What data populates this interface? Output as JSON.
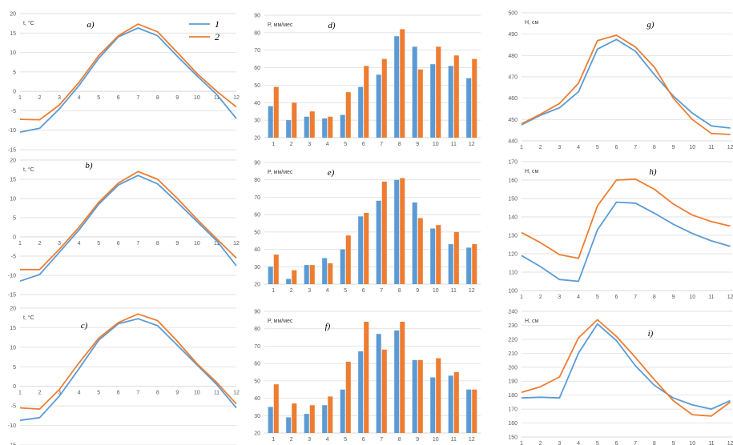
{
  "colors": {
    "series1": "#5B9BD5",
    "series2": "#ED7D31"
  },
  "legend": {
    "position": "inside panel a, top-right",
    "items": [
      "1",
      "2"
    ]
  },
  "chart_data": [
    {
      "id": "a",
      "type": "line",
      "panel_label": "a)",
      "ylabel": "t, °C",
      "ylim": [
        -15,
        20
      ],
      "yticks": [
        -15,
        -10,
        -5,
        0,
        5,
        10,
        15,
        20
      ],
      "x": [
        1,
        2,
        3,
        4,
        5,
        6,
        7,
        8,
        9,
        10,
        11,
        12
      ],
      "grid": true,
      "xaxis_at_zero": true,
      "series": [
        {
          "name": "1",
          "values": [
            -10.5,
            -9.5,
            -4.5,
            1.5,
            8.5,
            14,
            16.3,
            14.3,
            9,
            4,
            -0.8,
            -7
          ]
        },
        {
          "name": "2",
          "values": [
            -7.2,
            -7.3,
            -3.5,
            2.3,
            9.2,
            14.3,
            17.3,
            15.3,
            10,
            4.6,
            0,
            -4
          ]
        }
      ]
    },
    {
      "id": "d",
      "type": "bar",
      "panel_label": "d)",
      "ylabel": "P, мм/мес",
      "ylim": [
        20,
        90
      ],
      "yticks": [
        20,
        30,
        40,
        50,
        60,
        70,
        80,
        90
      ],
      "categories": [
        "1",
        "2",
        "3",
        "4",
        "5",
        "6",
        "7",
        "8",
        "9",
        "10",
        "11",
        "12"
      ],
      "grid": true,
      "series": [
        {
          "name": "1",
          "values": [
            38,
            30,
            32,
            31,
            33,
            49,
            56,
            78,
            72,
            62,
            61,
            54
          ]
        },
        {
          "name": "2",
          "values": [
            49,
            40,
            35,
            32,
            46,
            61,
            65,
            82,
            59,
            72,
            67,
            65
          ]
        }
      ]
    },
    {
      "id": "g",
      "type": "line",
      "panel_label": "g)",
      "ylabel": "H, см",
      "ylim": [
        440,
        500
      ],
      "yticks": [
        440,
        450,
        460,
        470,
        480,
        490,
        500
      ],
      "x": [
        1,
        2,
        3,
        4,
        5,
        6,
        7,
        8,
        9,
        10,
        11,
        12
      ],
      "xlim": [
        1,
        12.1
      ],
      "grid": true,
      "series": [
        {
          "name": "1",
          "values": [
            447.5,
            452,
            455.5,
            463,
            483,
            487.5,
            482,
            471,
            461,
            453,
            447,
            446
          ]
        },
        {
          "name": "2",
          "values": [
            448,
            452.5,
            457.5,
            467,
            487,
            489.5,
            484,
            474.5,
            460,
            450,
            443.5,
            443
          ]
        }
      ]
    },
    {
      "id": "b",
      "type": "line",
      "panel_label": "b)",
      "ylabel": "t, °C",
      "ylim": [
        -15,
        20
      ],
      "yticks": [
        -15,
        -10,
        -5,
        0,
        5,
        10,
        15,
        20
      ],
      "x": [
        1,
        2,
        3,
        4,
        5,
        6,
        7,
        8,
        9,
        10,
        11,
        12
      ],
      "grid": true,
      "xaxis_at_zero": true,
      "series": [
        {
          "name": "1",
          "values": [
            -11.5,
            -9.8,
            -4,
            1.8,
            8.5,
            13.5,
            16,
            13.8,
            9,
            4,
            -1,
            -7.5
          ]
        },
        {
          "name": "2",
          "values": [
            -8.5,
            -8.5,
            -3.2,
            2.5,
            9,
            14,
            17,
            15,
            10,
            4.6,
            -0.5,
            -5.5
          ]
        }
      ]
    },
    {
      "id": "e",
      "type": "bar",
      "panel_label": "e)",
      "ylabel": "P, мм/мес",
      "ylim": [
        20,
        90
      ],
      "yticks": [
        20,
        30,
        40,
        50,
        60,
        70,
        80,
        90
      ],
      "categories": [
        "1",
        "2",
        "3",
        "4",
        "5",
        "6",
        "7",
        "8",
        "9",
        "10",
        "11",
        "12"
      ],
      "grid": true,
      "series": [
        {
          "name": "1",
          "values": [
            30,
            23,
            31,
            35,
            40,
            59,
            68,
            80,
            67,
            52,
            43,
            41
          ]
        },
        {
          "name": "2",
          "values": [
            37,
            28,
            31,
            32,
            48,
            61,
            79,
            81,
            58,
            54,
            50,
            43
          ]
        }
      ]
    },
    {
      "id": "h",
      "type": "line",
      "panel_label": "h)",
      "ylabel": "H, см",
      "ylim": [
        100,
        170
      ],
      "yticks": [
        100,
        110,
        120,
        130,
        140,
        150,
        160,
        170
      ],
      "x": [
        1,
        2,
        3,
        4,
        5,
        6,
        7,
        8,
        9,
        10,
        11,
        12
      ],
      "xlim": [
        1,
        12.1
      ],
      "grid": true,
      "series": [
        {
          "name": "1",
          "values": [
            119,
            113,
            106,
            105,
            133,
            148,
            147.5,
            142,
            136,
            131,
            127,
            124
          ]
        },
        {
          "name": "2",
          "values": [
            131.5,
            126,
            119.5,
            117.5,
            146,
            160,
            160.5,
            155,
            147,
            141,
            137.5,
            135
          ]
        }
      ]
    },
    {
      "id": "c",
      "type": "line",
      "panel_label": "c)",
      "ylabel": "t, °C",
      "ylim": [
        -15,
        20
      ],
      "yticks": [
        -15,
        -10,
        -5,
        0,
        5,
        10,
        15,
        20
      ],
      "x": [
        1,
        2,
        3,
        4,
        5,
        6,
        7,
        8,
        9,
        10,
        11,
        12
      ],
      "grid": true,
      "xaxis_at_zero": true,
      "series": [
        {
          "name": "1",
          "values": [
            -8.7,
            -8,
            -2.5,
            4.5,
            11.8,
            16,
            17.3,
            15.5,
            10.5,
            5.5,
            0.5,
            -5.5
          ]
        },
        {
          "name": "2",
          "values": [
            -5.5,
            -5.8,
            -0.8,
            6,
            12.3,
            16.3,
            18.5,
            16.8,
            11.5,
            5.8,
            1,
            -4.5
          ]
        }
      ]
    },
    {
      "id": "f",
      "type": "bar",
      "panel_label": "f)",
      "ylabel": "P, мм/мес",
      "ylim": [
        20,
        90
      ],
      "yticks": [
        20,
        30,
        40,
        50,
        60,
        70,
        80,
        90
      ],
      "categories": [
        "1",
        "2",
        "3",
        "4",
        "5",
        "6",
        "7",
        "8",
        "9",
        "10",
        "11",
        "12"
      ],
      "grid": true,
      "series": [
        {
          "name": "1",
          "values": [
            35,
            29,
            31,
            36,
            45,
            67,
            77,
            79,
            62,
            52,
            53,
            45
          ]
        },
        {
          "name": "2",
          "values": [
            48,
            37,
            36,
            41,
            61,
            84,
            68,
            84,
            62,
            63,
            55,
            45
          ]
        }
      ]
    },
    {
      "id": "i",
      "type": "line",
      "panel_label": "i)",
      "ylabel": "H, см",
      "ylim": [
        150,
        240
      ],
      "yticks": [
        150,
        160,
        170,
        180,
        190,
        200,
        210,
        220,
        230,
        240
      ],
      "x": [
        1,
        2,
        3,
        4,
        5,
        6,
        7,
        8,
        9,
        10,
        11,
        12
      ],
      "xlim": [
        1,
        12.1
      ],
      "grid": true,
      "series": [
        {
          "name": "1",
          "values": [
            178,
            178.5,
            178,
            210,
            231,
            219,
            201,
            187,
            178,
            173,
            170,
            176
          ]
        },
        {
          "name": "2",
          "values": [
            182,
            186,
            193,
            221,
            234,
            222,
            207,
            191,
            176,
            166,
            165,
            175
          ]
        }
      ]
    }
  ]
}
